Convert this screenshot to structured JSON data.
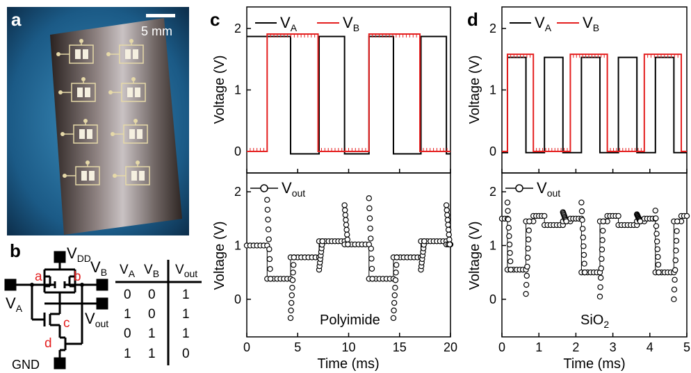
{
  "panels": {
    "a": {
      "label": "a",
      "scale_bar": "5 mm"
    },
    "b": {
      "label": "b",
      "circuit": {
        "vdd": "V",
        "vdd_sub": "DD",
        "vb": "V",
        "vb_sub": "B",
        "va": "V",
        "va_sub": "A",
        "vout": "V",
        "vout_sub": "out",
        "gnd": "GND",
        "nodes": [
          "a",
          "b",
          "c",
          "d"
        ]
      },
      "truth_table": {
        "headers": [
          {
            "main": "V",
            "sub": "A"
          },
          {
            "main": "V",
            "sub": "B"
          },
          {
            "main": "V",
            "sub": "out"
          }
        ],
        "rows": [
          [
            "0",
            "0",
            "1"
          ],
          [
            "1",
            "0",
            "1"
          ],
          [
            "0",
            "1",
            "1"
          ],
          [
            "1",
            "1",
            "0"
          ]
        ]
      }
    },
    "c": {
      "label": "c",
      "substrate": "Polyimide"
    },
    "d": {
      "label": "d",
      "substrate_main": "SiO",
      "substrate_sub": "2"
    }
  },
  "axes": {
    "ylabel": "Voltage (V)",
    "xlabel": "Time (ms)",
    "legend_va": {
      "main": "V",
      "sub": "A"
    },
    "legend_vb": {
      "main": "V",
      "sub": "B"
    },
    "legend_vout": {
      "main": "V",
      "sub": "out"
    }
  },
  "colors": {
    "va": "#000000",
    "vb": "#e41e1e",
    "vout_marker": "#000000"
  },
  "chart_data": [
    {
      "id": "c-top",
      "type": "line",
      "xlim": [
        0,
        20
      ],
      "ylim": [
        -0.35,
        2.35
      ],
      "xticks": [
        0,
        5,
        10,
        15,
        20
      ],
      "yticks": [
        0,
        1,
        2
      ],
      "ytick_labels": [
        "0",
        "1",
        "2"
      ],
      "series": [
        {
          "name": "VA",
          "high": 1.87,
          "low": -0.04,
          "segments": [
            [
              0,
              4.3,
              1
            ],
            [
              4.3,
              7.1,
              0
            ],
            [
              7.1,
              9.6,
              1
            ],
            [
              9.6,
              12.0,
              0
            ],
            [
              12.0,
              14.4,
              1
            ],
            [
              14.4,
              17.1,
              0
            ],
            [
              17.1,
              19.6,
              1
            ],
            [
              19.6,
              20,
              0
            ]
          ]
        },
        {
          "name": "VB",
          "high": 1.91,
          "low": 0.0,
          "segments": [
            [
              0,
              2.0,
              0
            ],
            [
              2.0,
              7.0,
              1
            ],
            [
              7.0,
              12.0,
              0
            ],
            [
              12.0,
              17.0,
              1
            ],
            [
              17.0,
              20,
              0
            ]
          ]
        }
      ]
    },
    {
      "id": "c-bottom",
      "type": "scatter",
      "xlim": [
        0,
        20
      ],
      "ylim": [
        -0.7,
        2.35
      ],
      "xticks": [
        0,
        5,
        10,
        15,
        20
      ],
      "xtick_labels": [
        "0",
        "5",
        "10",
        "15",
        "20"
      ],
      "yticks": [
        0,
        1,
        2
      ],
      "ytick_labels": [
        "0",
        "1",
        "2"
      ],
      "series": [
        {
          "name": "Vout",
          "levels": [
            [
              0,
              2.0,
              1.0
            ],
            [
              2.0,
              4.3,
              0.38
            ],
            [
              4.3,
              7.1,
              0.78
            ],
            [
              7.1,
              9.6,
              1.08
            ],
            [
              9.6,
              12.0,
              1.02
            ],
            [
              12.0,
              14.4,
              0.38
            ],
            [
              14.4,
              17.1,
              0.78
            ],
            [
              17.1,
              19.6,
              1.08
            ],
            [
              19.6,
              20,
              1.02
            ]
          ],
          "spikes": [
            [
              2.0,
              1.85
            ],
            [
              4.3,
              -0.35
            ],
            [
              7.1,
              0.55
            ],
            [
              9.6,
              1.75
            ],
            [
              12.0,
              1.88
            ],
            [
              14.4,
              -0.35
            ],
            [
              17.1,
              0.55
            ],
            [
              19.6,
              1.75
            ]
          ]
        }
      ]
    },
    {
      "id": "d-top",
      "type": "line",
      "xlim": [
        0,
        5
      ],
      "ylim": [
        -0.35,
        2.35
      ],
      "xticks": [
        0,
        1,
        2,
        3,
        4,
        5
      ],
      "yticks": [
        0,
        1,
        2
      ],
      "ytick_labels": [
        "0",
        "1",
        "2"
      ],
      "series": [
        {
          "name": "VA",
          "high": 1.53,
          "low": -0.02,
          "segments": [
            [
              0,
              0.15,
              0
            ],
            [
              0.15,
              0.65,
              1
            ],
            [
              0.65,
              1.15,
              0
            ],
            [
              1.15,
              1.65,
              1
            ],
            [
              1.65,
              2.15,
              0
            ],
            [
              2.15,
              2.65,
              1
            ],
            [
              2.65,
              3.15,
              0
            ],
            [
              3.15,
              3.65,
              1
            ],
            [
              3.65,
              4.15,
              0
            ],
            [
              4.15,
              4.65,
              1
            ],
            [
              4.65,
              5,
              0
            ]
          ]
        },
        {
          "name": "VB",
          "high": 1.58,
          "low": 0.0,
          "segments": [
            [
              0,
              0.15,
              0
            ],
            [
              0.15,
              0.85,
              1
            ],
            [
              0.85,
              1.85,
              0
            ],
            [
              1.85,
              2.85,
              1
            ],
            [
              2.85,
              3.85,
              0
            ],
            [
              3.85,
              4.85,
              1
            ],
            [
              4.85,
              5,
              0
            ]
          ]
        }
      ]
    },
    {
      "id": "d-bottom",
      "type": "scatter",
      "xlim": [
        0,
        5
      ],
      "ylim": [
        -0.7,
        2.35
      ],
      "xticks": [
        0,
        1,
        2,
        3,
        4,
        5
      ],
      "xtick_labels": [
        "0",
        "1",
        "2",
        "3",
        "4",
        "5"
      ],
      "yticks": [
        0,
        1,
        2
      ],
      "ytick_labels": [
        "0",
        "1",
        "2"
      ],
      "series": [
        {
          "name": "Vout",
          "levels": [
            [
              0,
              0.15,
              1.5
            ],
            [
              0.15,
              0.65,
              0.55
            ],
            [
              0.65,
              0.85,
              1.45
            ],
            [
              0.85,
              1.15,
              1.55
            ],
            [
              1.15,
              1.65,
              1.38
            ],
            [
              1.65,
              1.85,
              1.45
            ],
            [
              1.85,
              2.15,
              1.5
            ],
            [
              2.15,
              2.65,
              0.5
            ],
            [
              2.65,
              2.85,
              1.45
            ],
            [
              2.85,
              3.15,
              1.55
            ],
            [
              3.15,
              3.65,
              1.38
            ],
            [
              3.65,
              3.85,
              1.45
            ],
            [
              3.85,
              4.15,
              1.5
            ],
            [
              4.15,
              4.65,
              0.5
            ],
            [
              4.65,
              4.85,
              1.45
            ],
            [
              4.85,
              5,
              1.55
            ]
          ],
          "spikes": [
            [
              0.15,
              1.8
            ],
            [
              0.65,
              0.1
            ],
            [
              1.65,
              1.62
            ],
            [
              2.15,
              1.8
            ],
            [
              2.65,
              0.05
            ],
            [
              3.65,
              1.58
            ],
            [
              4.15,
              1.65
            ],
            [
              4.65,
              0.0
            ]
          ]
        }
      ]
    }
  ]
}
